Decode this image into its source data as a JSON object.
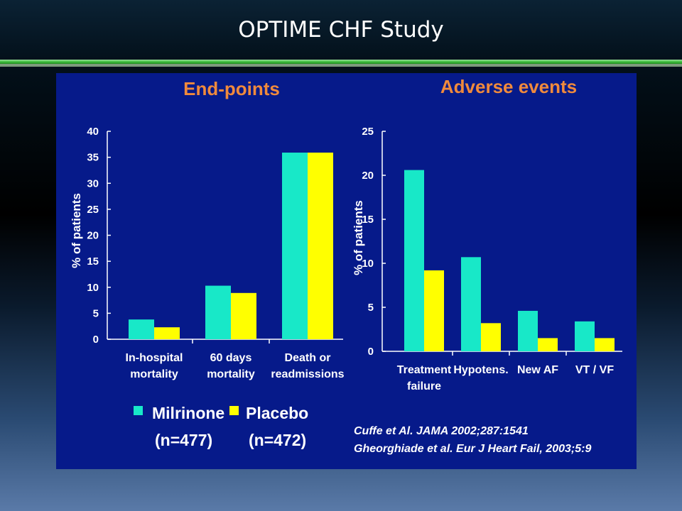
{
  "slide": {
    "title": "OPTIME CHF Study"
  },
  "colors": {
    "milrinone": "#18e8c8",
    "placebo": "#ffff00",
    "panel_background": "#061a8a",
    "chart_title": "#f08a3c"
  },
  "legend": {
    "items": [
      {
        "line1": "Milrinone",
        "line2": "(n=477)",
        "color": "#18e8c8"
      },
      {
        "line1": "Placebo",
        "line2": "(n=472)",
        "color": "#ffff00"
      }
    ]
  },
  "citations": [
    "Cuffe et Al. JAMA 2002;287:1541",
    "Gheorghiade et al. Eur J Heart Fail, 2003;5:9"
  ],
  "chart_data": [
    {
      "type": "bar",
      "title": "End-points",
      "ylabel": "% of patients",
      "xlabel": "",
      "ylim": [
        0,
        40
      ],
      "yticks": [
        0,
        5,
        10,
        15,
        20,
        25,
        30,
        35,
        40
      ],
      "categories": [
        [
          "In-hospital",
          "mortality"
        ],
        [
          "60 days",
          "mortality"
        ],
        [
          "Death or",
          "readmissions"
        ]
      ],
      "series": [
        {
          "name": "Milrinone",
          "values": [
            3.8,
            10.3,
            35.9
          ]
        },
        {
          "name": "Placebo",
          "values": [
            2.3,
            8.9,
            35.9
          ]
        }
      ],
      "grid": false
    },
    {
      "type": "bar",
      "title": "Adverse events",
      "ylabel": "% of patients",
      "xlabel": "",
      "ylim": [
        0,
        25
      ],
      "yticks": [
        0,
        5,
        10,
        15,
        20,
        25
      ],
      "categories": [
        [
          "Treatment",
          "failure"
        ],
        [
          "Hypotens."
        ],
        [
          "New AF"
        ],
        [
          "VT / VF"
        ]
      ],
      "series": [
        {
          "name": "Milrinone",
          "values": [
            20.6,
            10.7,
            4.6,
            3.4
          ]
        },
        {
          "name": "Placebo",
          "values": [
            9.2,
            3.2,
            1.5,
            1.5
          ]
        }
      ],
      "grid": false
    }
  ]
}
